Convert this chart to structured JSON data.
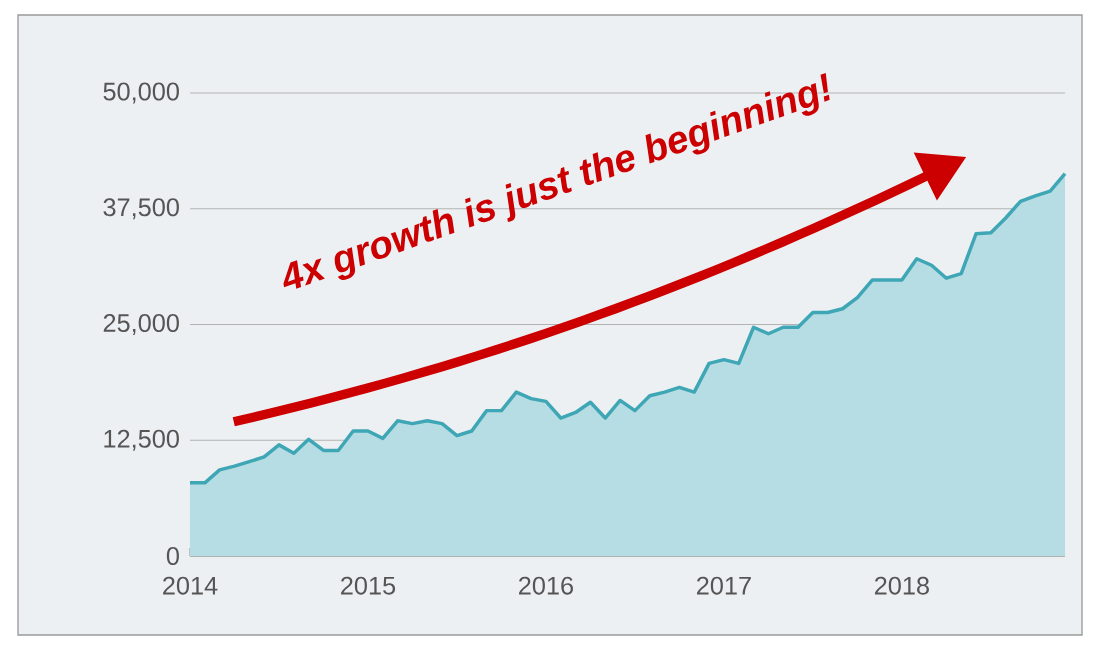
{
  "chart_data": {
    "type": "area",
    "color": "#3fa6b5",
    "x": [
      "2014-01",
      "2014-02",
      "2014-03",
      "2014-04",
      "2014-05",
      "2014-06",
      "2014-07",
      "2014-08",
      "2014-09",
      "2014-10",
      "2014-11",
      "2014-12",
      "2015-01",
      "2015-02",
      "2015-03",
      "2015-04",
      "2015-05",
      "2015-06",
      "2015-07",
      "2015-08",
      "2015-09",
      "2015-10",
      "2015-11",
      "2015-12",
      "2016-01",
      "2016-02",
      "2016-03",
      "2016-04",
      "2016-05",
      "2016-06",
      "2016-07",
      "2016-08",
      "2016-09",
      "2016-10",
      "2016-11",
      "2016-12",
      "2017-01",
      "2017-02",
      "2017-03",
      "2017-04",
      "2017-05",
      "2017-06",
      "2017-07",
      "2017-08",
      "2017-09",
      "2017-10",
      "2017-11",
      "2017-12",
      "2018-01",
      "2018-02",
      "2018-03",
      "2018-04",
      "2018-05",
      "2018-06",
      "2018-07",
      "2018-08",
      "2018-09",
      "2018-10",
      "2018-11",
      "2018-12"
    ],
    "values": [
      7900,
      7900,
      9300,
      9700,
      10200,
      10700,
      12000,
      11100,
      12600,
      11400,
      11400,
      13500,
      13500,
      12700,
      14600,
      14300,
      14600,
      14300,
      13000,
      13500,
      15700,
      15700,
      17700,
      17000,
      16700,
      14900,
      15500,
      16600,
      14900,
      16800,
      15700,
      17300,
      17700,
      18200,
      17700,
      20800,
      21200,
      20800,
      24700,
      24000,
      24700,
      24700,
      26300,
      26300,
      26700,
      27900,
      29800,
      29800,
      29800,
      32100,
      31400,
      30000,
      30500,
      34800,
      34900,
      36500,
      38300,
      38900,
      39400,
      41300
    ],
    "xlim": [
      "2014-01",
      "2018-12"
    ],
    "xticks": [
      "2014",
      "2015",
      "2016",
      "2017",
      "2018"
    ],
    "ylim": [
      0,
      50000
    ],
    "yticks": [
      0,
      {
        "value": 12500,
        "label": "12,500"
      },
      {
        "value": 25000,
        "label": "25,000"
      },
      {
        "value": 37500,
        "label": "37,500"
      },
      {
        "value": 50000,
        "label": "50,000"
      }
    ],
    "grid": "y",
    "annotations": [
      "4x growth is just the beginning!"
    ]
  }
}
